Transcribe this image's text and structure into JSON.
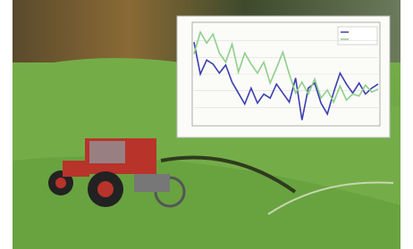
{
  "chart_data": {
    "type": "line",
    "categories": [
      null,
      null,
      null,
      null,
      null,
      null,
      null,
      null,
      null,
      null,
      null,
      null,
      null,
      null,
      null,
      null,
      null,
      null,
      null,
      null,
      null,
      null,
      null,
      null,
      null,
      null,
      null,
      null,
      null,
      null
    ],
    "series": [
      {
        "color": "#3b3fb0",
        "values": [
          8.2,
          5.0,
          6.4,
          6.0,
          5.1,
          5.9,
          4.2,
          3.1,
          2.0,
          3.6,
          2.1,
          3.0,
          2.6,
          4.0,
          3.1,
          2.2,
          4.6,
          0.4,
          3.6,
          4.1,
          2.1,
          1.0,
          3.2,
          5.1,
          4.0,
          3.1,
          4.1,
          3.0,
          3.6,
          4.0
        ]
      },
      {
        "color": "#8fcf8a",
        "values": [
          7.0,
          9.2,
          8.1,
          9.0,
          7.1,
          6.2,
          8.0,
          5.2,
          7.1,
          6.0,
          5.1,
          6.2,
          4.1,
          5.6,
          7.2,
          5.0,
          3.1,
          4.2,
          3.0,
          4.5,
          2.6,
          3.4,
          2.2,
          3.8,
          2.4,
          3.0,
          2.8,
          3.9,
          3.2,
          3.5
        ]
      }
    ],
    "ylim": [
      0,
      10
    ],
    "grid": true
  }
}
